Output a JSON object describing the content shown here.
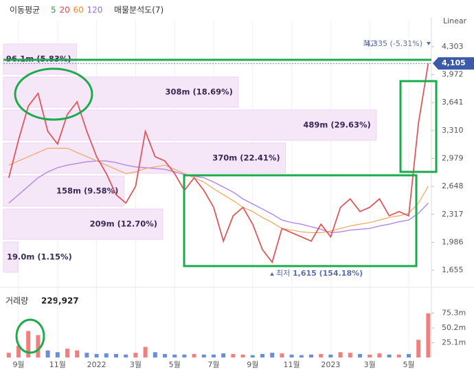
{
  "chart_data": {
    "type": "line",
    "legend": {
      "title": "이동평균",
      "periods": [
        {
          "label": 5,
          "color": "#2ca02c"
        },
        {
          "label": 20,
          "color": "#e0444a"
        },
        {
          "label": 60,
          "color": "#f08c2a"
        },
        {
          "label": 120,
          "color": "#9b6bd6"
        }
      ],
      "profile_title": "매물분석도(7)"
    },
    "scale_label": "Linear",
    "categories": [
      null,
      "9월",
      null,
      null,
      null,
      "11월",
      null,
      null,
      null,
      "2022",
      null,
      null,
      null,
      "3월",
      null,
      null,
      null,
      "5월",
      null,
      null,
      null,
      "7월",
      null,
      null,
      null,
      "9월",
      null,
      null,
      null,
      "11월",
      null,
      null,
      null,
      "2023",
      null,
      null,
      null,
      "3월",
      null,
      null,
      null,
      "5월",
      null,
      null
    ],
    "close": {
      "color": "#e0555a",
      "values": [
        2750,
        3200,
        3600,
        3750,
        3300,
        3150,
        3500,
        3650,
        3300,
        3000,
        2800,
        2550,
        2450,
        2650,
        3300,
        3000,
        2950,
        2800,
        2600,
        2750,
        2600,
        2400,
        2000,
        2300,
        2400,
        2200,
        1900,
        1750,
        2150,
        2100,
        2050,
        2000,
        2200,
        2050,
        2400,
        2500,
        2350,
        2400,
        2500,
        2300,
        2350,
        2300,
        3400,
        4105
      ]
    },
    "ma60": {
      "color": "#f4a460",
      "values": [
        2900,
        2950,
        3000,
        3050,
        3100,
        3100,
        3100,
        3050,
        3000,
        2950,
        2900,
        2850,
        2800,
        2820,
        2860,
        2880,
        2900,
        2850,
        2800,
        2750,
        2700,
        2620,
        2550,
        2480,
        2400,
        2350,
        2280,
        2220,
        2150,
        2130,
        2110,
        2100,
        2100,
        2120,
        2150,
        2180,
        2200,
        2220,
        2250,
        2280,
        2300,
        2330,
        2450,
        2650
      ]
    },
    "ma120": {
      "color": "#b58ce6",
      "values": [
        2450,
        2550,
        2650,
        2750,
        2820,
        2870,
        2900,
        2920,
        2940,
        2950,
        2950,
        2930,
        2900,
        2880,
        2870,
        2860,
        2850,
        2820,
        2790,
        2770,
        2750,
        2700,
        2640,
        2580,
        2500,
        2440,
        2380,
        2320,
        2250,
        2220,
        2200,
        2170,
        2140,
        2100,
        2110,
        2130,
        2140,
        2150,
        2180,
        2200,
        2230,
        2250,
        2330,
        2450
      ]
    },
    "ylim": [
      1517,
      4612
    ],
    "yticks": [
      {
        "value": 4303,
        "label": "4,303"
      },
      {
        "value": 3972,
        "label": "3,972"
      },
      {
        "value": 3641,
        "label": "3,641"
      },
      {
        "value": 3310,
        "label": "3,310"
      },
      {
        "value": 2979,
        "label": "2,979"
      },
      {
        "value": 2648,
        "label": "2,648"
      },
      {
        "value": 2317,
        "label": "2,317"
      },
      {
        "value": 1986,
        "label": "1,986"
      },
      {
        "value": 1655,
        "label": "1,655"
      }
    ],
    "current": {
      "value": 4105,
      "label": "4,105",
      "color": "#3b5ba9"
    },
    "high": {
      "prefix": "최고",
      "value": 4335,
      "label": "4,335 (-5.31%)"
    },
    "low": {
      "prefix": "최저",
      "value": 1615,
      "label": "1,615 (154.18%)"
    },
    "profile": {
      "color": "#f5e6f8",
      "values": [
        96.1,
        308,
        489,
        370,
        158,
        209,
        19.0
      ],
      "percents": [
        5.83,
        18.69,
        29.63,
        22.41,
        9.58,
        12.7,
        1.15
      ],
      "value_labels": [
        "96.1m (5.83%)",
        "308m (18.69%)",
        "489m (29.63%)",
        "370m (22.41%)",
        "158m (9.58%)",
        "209m (12.70%)",
        "19.0m (1.15%)"
      ]
    },
    "volume": {
      "title": "거래량",
      "last_label": "229,927",
      "up_color": "#f08080",
      "down_color": "#6a8fd8",
      "values": [
        8,
        20,
        45,
        38,
        12,
        9,
        15,
        12,
        8,
        6,
        7,
        6,
        5,
        8,
        18,
        9,
        6,
        5,
        5,
        6,
        5,
        5,
        7,
        6,
        5,
        4,
        6,
        8,
        7,
        5,
        4,
        5,
        6,
        5,
        9,
        8,
        6,
        5,
        7,
        5,
        5,
        6,
        30,
        75
      ],
      "ylim": [
        0,
        105
      ],
      "yticks": [
        {
          "value": 75.3,
          "label": "75.3m"
        },
        {
          "value": 50.2,
          "label": "50.2m"
        },
        {
          "value": 25.1,
          "label": "25.1m"
        }
      ]
    }
  }
}
